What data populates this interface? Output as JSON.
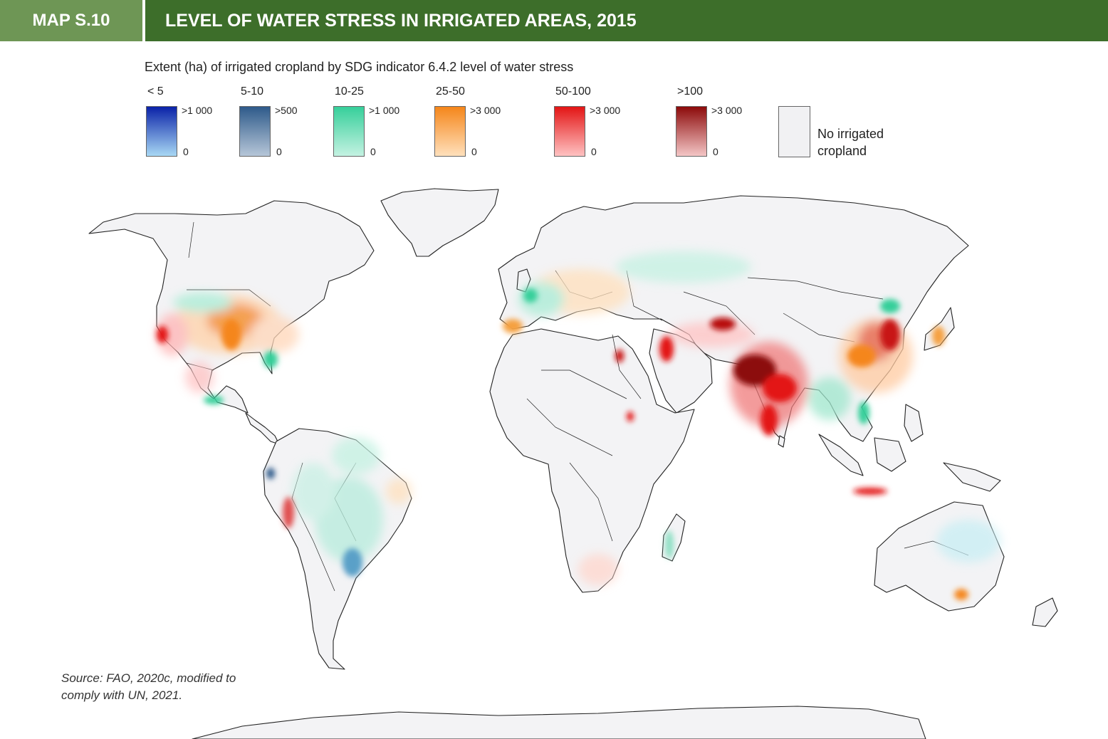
{
  "header": {
    "map_label": "MAP S.10",
    "title": "LEVEL OF WATER STRESS IN IRRIGATED AREAS, 2015",
    "label_color": "#6e9655",
    "title_color": "#3d6e2a"
  },
  "legend": {
    "title": "Extent (ha) of irrigated cropland by SDG indicator 6.4.2 level of water stress",
    "classes": [
      {
        "range": "< 5",
        "max": ">1 000",
        "min": "0",
        "color_high": "#0a22a8",
        "color_low": "#a8d8f4"
      },
      {
        "range": "5-10",
        "max": ">500",
        "min": "0",
        "color_high": "#2e5a8a",
        "color_low": "#b6c6d8"
      },
      {
        "range": "10-25",
        "max": ">1 000",
        "min": "0",
        "color_high": "#36cf9a",
        "color_low": "#c4f2e2"
      },
      {
        "range": "25-50",
        "max": ">3 000",
        "min": "0",
        "color_high": "#f5861a",
        "color_low": "#ffe0bc"
      },
      {
        "range": "50-100",
        "max": ">3 000",
        "min": "0",
        "color_high": "#e31515",
        "color_low": "#ffc2c2"
      },
      {
        "range": ">100",
        "max": ">3 000",
        "min": "0",
        "color_high": "#8c0a0a",
        "color_low": "#f4c6c6"
      }
    ],
    "no_irrigation": {
      "label": "No irrigated cropland",
      "color": "#f1f1f3"
    }
  },
  "map": {
    "region_colors": {
      "land": "#f3f3f5",
      "outline": "#222222"
    }
  },
  "source": "Source: FAO, 2020c, modified to comply with UN, 2021."
}
